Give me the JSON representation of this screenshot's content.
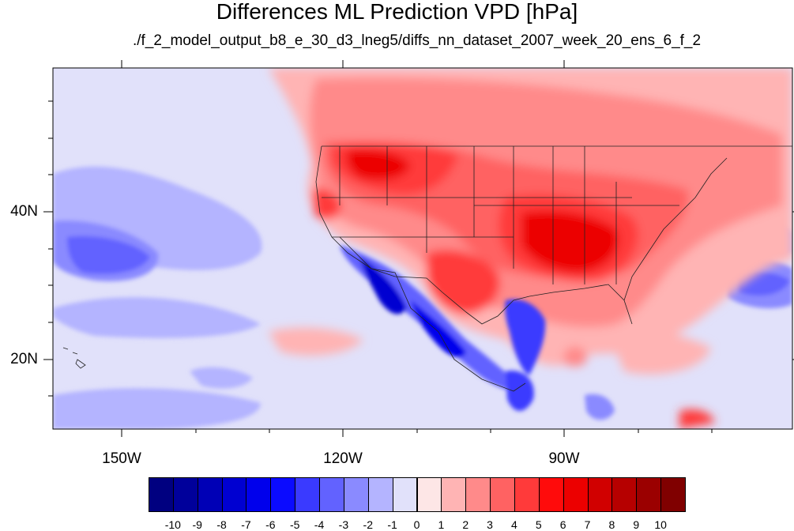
{
  "title": "Differences ML Prediction VPD [hPa]",
  "subtitle": "./f_2_model_output_b8_e_30_d3_lneg5/diffs_nn_dataset_2007_week_20_ens_6_f_2",
  "lon_labels": [
    "150W",
    "120W",
    "90W"
  ],
  "lat_labels": [
    "40N",
    "20N"
  ],
  "colorbar": {
    "ticks": [
      "-10",
      "-9",
      "-8",
      "-7",
      "-6",
      "-5",
      "-4",
      "-3",
      "-2",
      "-1",
      "0",
      "1",
      "2",
      "3",
      "4",
      "5",
      "6",
      "7",
      "8",
      "9",
      "10"
    ],
    "colors": [
      "#000080",
      "#00009b",
      "#0000b6",
      "#0000d1",
      "#0000ec",
      "#0b0bff",
      "#3a3aff",
      "#6262ff",
      "#8a8aff",
      "#b4b4ff",
      "#e1e1fa",
      "#fde6e6",
      "#ffb4b4",
      "#ff8a8a",
      "#ff6262",
      "#ff3a3a",
      "#ff0b0b",
      "#ec0000",
      "#d10000",
      "#b60000",
      "#9b0000",
      "#800000"
    ]
  },
  "map": {
    "lon_range": [
      -160,
      -60
    ],
    "lat_range": [
      10,
      58
    ],
    "background_color": "#e1e1fa"
  }
}
